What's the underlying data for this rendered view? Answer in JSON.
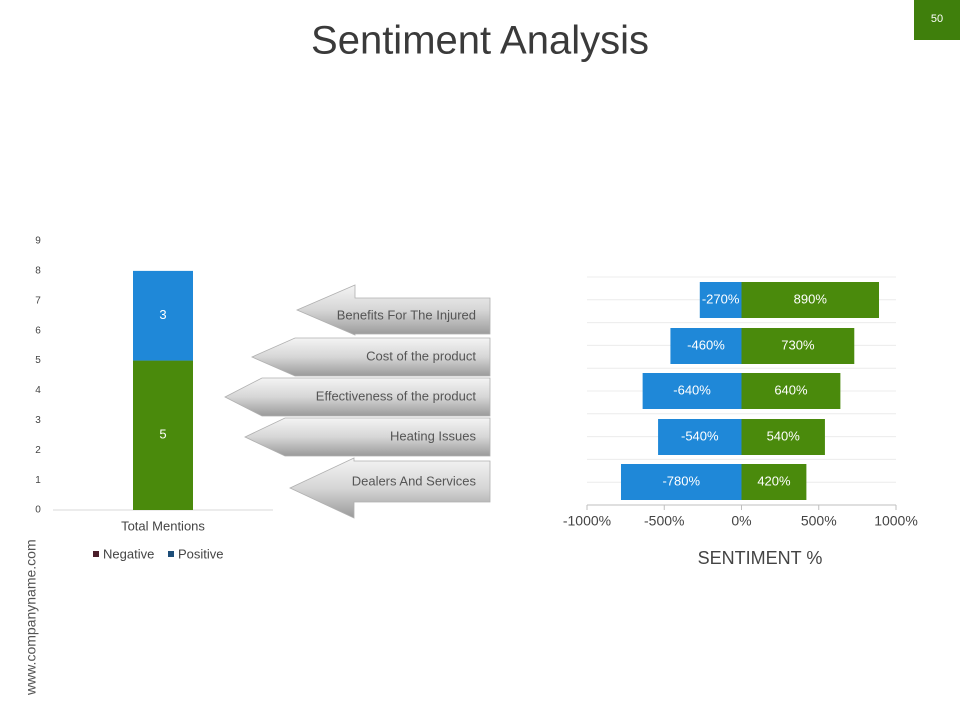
{
  "slide_number": "50",
  "title": "Sentiment Analysis",
  "website": "www.companyname.com",
  "chart_data": [
    {
      "type": "stacked_bar",
      "categories": [
        "Total Mentions"
      ],
      "series": [
        {
          "name": "Negative",
          "color": "#4a8a0c",
          "legend_color": "#4b1f2a",
          "values": [
            5
          ]
        },
        {
          "name": "Positive",
          "color": "#1f88d8",
          "legend_color": "#1e4e79",
          "values": [
            3
          ]
        }
      ],
      "ylim": [
        0,
        9
      ],
      "yticks": [
        0,
        1,
        2,
        3,
        4,
        5,
        6,
        7,
        8,
        9
      ]
    },
    {
      "type": "diverging_bar",
      "x_label": "SENTIMENT %",
      "categories": [
        "Benefits For The Injured",
        "Cost of the product",
        "Effectiveness of the product",
        "Heating Issues",
        "Dealers And Services"
      ],
      "series": [
        {
          "color": "#1f88d8",
          "values": [
            -270,
            -460,
            -640,
            -540,
            -780
          ],
          "value_labels": [
            "-270%",
            "-460%",
            "-640%",
            "-540%",
            "-780%"
          ]
        },
        {
          "color": "#4a8a0c",
          "values": [
            890,
            730,
            640,
            540,
            420
          ],
          "value_labels": [
            "890%",
            "730%",
            "640%",
            "540%",
            "420%"
          ]
        }
      ],
      "xlim": [
        -1000,
        1000
      ],
      "xticks": [
        {
          "value": -1000,
          "label": "-1000%"
        },
        {
          "value": -500,
          "label": "-500%"
        },
        {
          "value": 0,
          "label": "0%"
        },
        {
          "value": 500,
          "label": "500%"
        },
        {
          "value": 1000,
          "label": "1000%"
        }
      ]
    }
  ]
}
